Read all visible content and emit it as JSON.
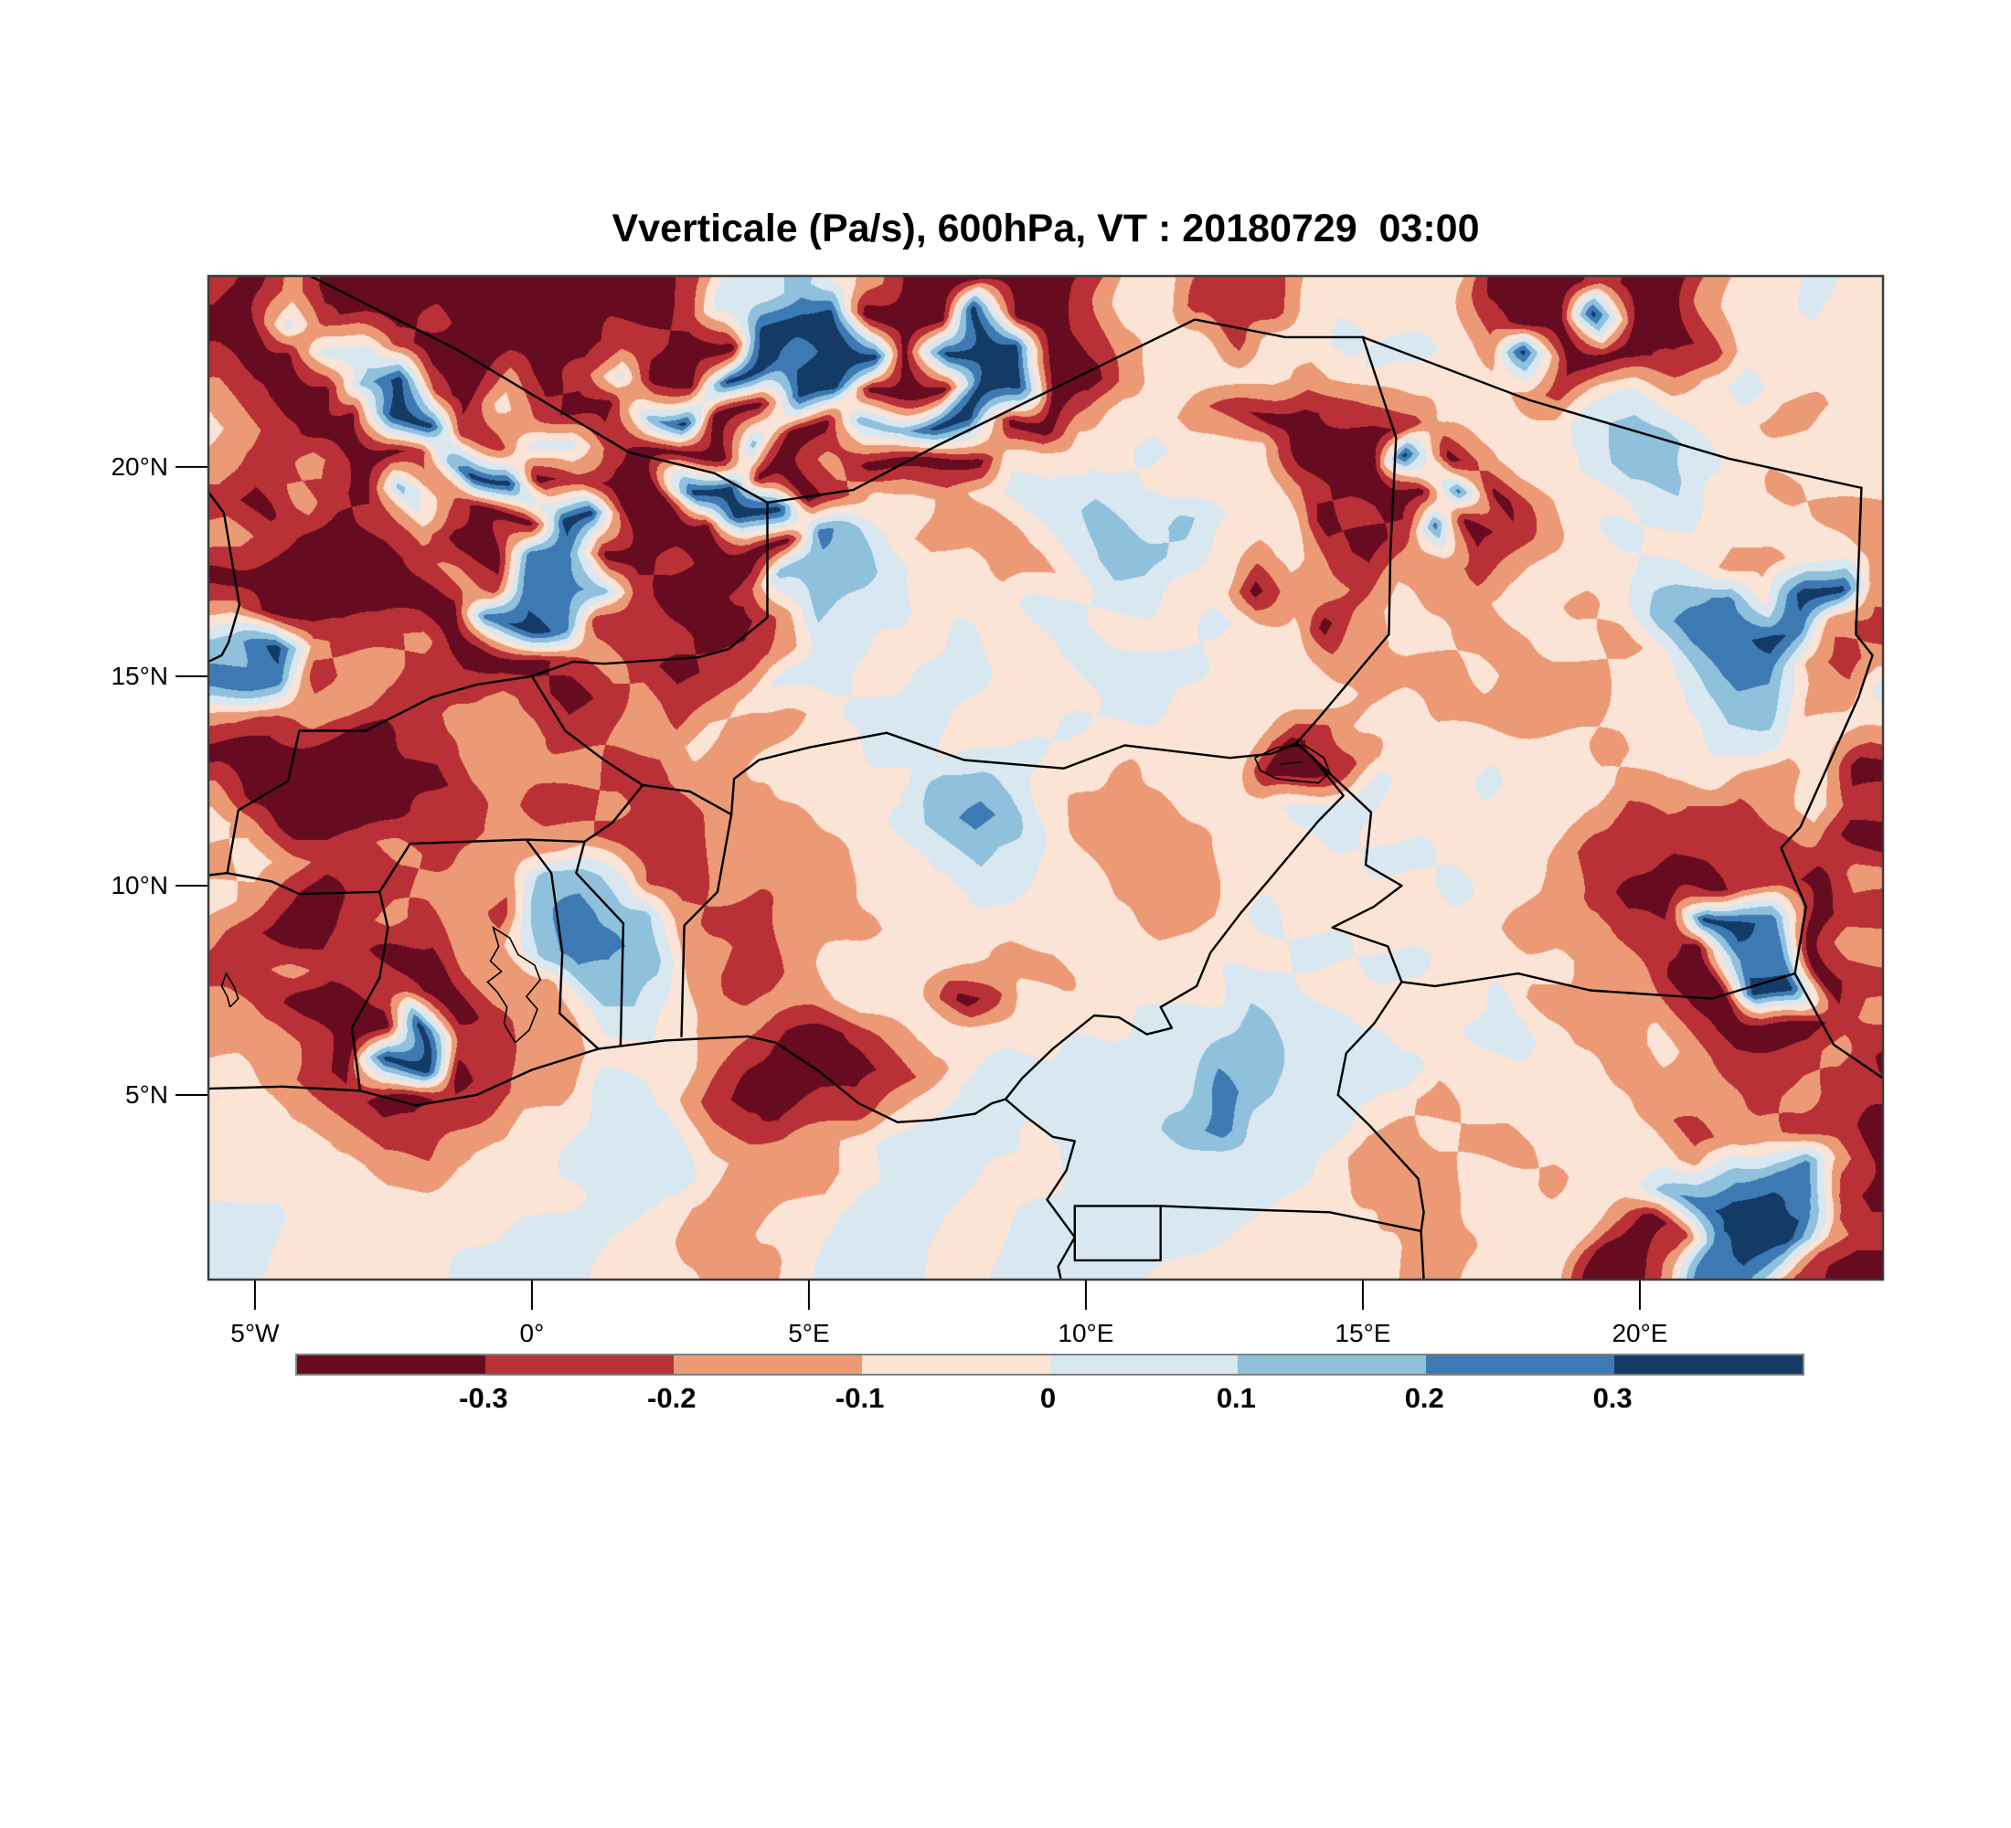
{
  "title": "Vverticale (Pa/s), 600hPa, VT : 20180729  03:00",
  "chart_data": {
    "type": "heatmap",
    "variable": "Vverticale",
    "units": "Pa/s",
    "pressure_level": "600hPa",
    "valid_time": "20180729  03:00",
    "title": "Vverticale (Pa/s), 600hPa, VT : 20180729  03:00",
    "grid_on": false,
    "extent": {
      "lon_min": -5.84,
      "lon_max": 24.39,
      "lat_min": 0.59,
      "lat_max": 24.56
    },
    "x_ticks": [
      {
        "label": "5°W",
        "lon": -5
      },
      {
        "label": "0°",
        "lon": 0
      },
      {
        "label": "5°E",
        "lon": 5
      },
      {
        "label": "10°E",
        "lon": 10
      },
      {
        "label": "15°E",
        "lon": 15
      },
      {
        "label": "20°E",
        "lon": 20
      }
    ],
    "y_ticks": [
      {
        "label": "20°N",
        "lat": 20
      },
      {
        "label": "15°N",
        "lat": 15
      },
      {
        "label": "10°N",
        "lat": 10
      },
      {
        "label": "5°N",
        "lat": 5
      }
    ],
    "colorbar": {
      "tick_labels": [
        "-0.3",
        "-0.2",
        "-0.1",
        "0",
        "0.1",
        "0.2",
        "0.3"
      ],
      "thresholds": [
        -0.3,
        -0.2,
        -0.1,
        0,
        0.1,
        0.2,
        0.3
      ],
      "colors": [
        "#670c20",
        "#b93036",
        "#ec9a76",
        "#fbe3d6",
        "#d8e7f0",
        "#8fc0dc",
        "#3d7ab4",
        "#143a66"
      ]
    },
    "grid": {
      "cols": 46,
      "rows": 28,
      "value_of_level": "v = -0.35 + 0.1*digit",
      "level_rows": [
        "1020000000000144532000001331113333300010023343",
        "0041001000011007770007001233133433310070013333",
        "1004410020140077677077700233332344327000134333",
        "2100571031005700770007701332100123332134333223",
        "3210077114410005005577003343330001333345543333",
        "2112001770100770020000334433331007023345533233",
        "1021052007700077013323445454330100602334433322",
        "2100120066001000653222345543231016012343322332",
        "0000012166510015554332234433022122123334563772",
        "2000000676111002544333443334330232233235667621",
        "5721120001210112443343344443332233223323566212",
        "6612211210121234433443334433333222322233455224",
        "2122112221122322344433343333301332222233344332",
        "0000011222211223334433433233300133333323332230",
        "2000000121121122333355432223334443343332211231",
        "3200001122211122233456532222333433333321111120",
        "2321121225541122223345433222333344333211001102",
        "3210112215655211223334433322343333433210077601",
        "2100121225665221222333333333334433332221106602",
        "1121100222554211233333223333443344333322007701",
        "2100110122443222233301333444544333342222100012",
        "2210071122333210012333344445544433443223211120",
        "3210770122443100001234444446544443333322221211",
        "3321001233444210112344444456444332333332122110",
        "3332112334444322234444344444443223223333256620",
        "3333223333443222234443344444433222332335677610",
        "4433333344433223344433444444333322333320167721",
        "4433333444433322344433444433333332233300266210"
      ]
    },
    "borders": [
      [
        [
          -5.84,
          5.15
        ],
        [
          -4.5,
          5.2
        ],
        [
          -3.1,
          5.1
        ],
        [
          -2.1,
          4.75
        ],
        [
          -1.0,
          5.0
        ],
        [
          0.0,
          5.6
        ],
        [
          1.2,
          6.1
        ],
        [
          2.4,
          6.3
        ],
        [
          3.9,
          6.4
        ],
        [
          4.4,
          6.25
        ],
        [
          5.2,
          5.55
        ],
        [
          5.9,
          4.8
        ],
        [
          6.6,
          4.35
        ],
        [
          7.2,
          4.4
        ],
        [
          8.0,
          4.55
        ],
        [
          8.3,
          4.8
        ],
        [
          8.55,
          4.9
        ],
        [
          8.9,
          4.5
        ],
        [
          9.4,
          4.0
        ],
        [
          9.8,
          3.9
        ],
        [
          9.65,
          3.2
        ],
        [
          9.3,
          2.5
        ],
        [
          9.8,
          1.6
        ],
        [
          9.5,
          0.9
        ],
        [
          9.55,
          0.59
        ]
      ],
      [
        [
          -3.1,
          5.1
        ],
        [
          -3.25,
          6.6
        ],
        [
          -2.75,
          7.8
        ],
        [
          -2.6,
          9.0
        ],
        [
          -2.75,
          9.85
        ]
      ],
      [
        [
          -2.75,
          9.85
        ],
        [
          -4.2,
          9.8
        ],
        [
          -4.7,
          10.1
        ],
        [
          -5.5,
          10.3
        ],
        [
          -5.84,
          10.25
        ]
      ],
      [
        [
          -5.5,
          10.3
        ],
        [
          -5.3,
          11.8
        ],
        [
          -4.4,
          12.5
        ],
        [
          -4.2,
          13.7
        ],
        [
          -3.0,
          13.7
        ],
        [
          -1.8,
          14.5
        ],
        [
          -1.0,
          14.8
        ],
        [
          0.0,
          15.0
        ]
      ],
      [
        [
          1.2,
          6.1
        ],
        [
          0.5,
          6.95
        ],
        [
          0.55,
          8.4
        ],
        [
          0.35,
          10.3
        ],
        [
          -0.1,
          11.1
        ]
      ],
      [
        [
          -2.75,
          9.85
        ],
        [
          -2.2,
          11.0
        ],
        [
          -0.1,
          11.1
        ]
      ],
      [
        [
          1.6,
          6.2
        ],
        [
          1.65,
          9.1
        ],
        [
          0.8,
          10.3
        ],
        [
          0.95,
          11.05
        ]
      ],
      [
        [
          -0.1,
          11.1
        ],
        [
          0.95,
          11.05
        ],
        [
          1.45,
          11.5
        ],
        [
          2.0,
          12.4
        ]
      ],
      [
        [
          2.7,
          6.4
        ],
        [
          2.75,
          9.05
        ],
        [
          3.35,
          9.85
        ],
        [
          3.6,
          11.7
        ]
      ],
      [
        [
          2.0,
          12.4
        ],
        [
          2.85,
          12.25
        ],
        [
          3.6,
          11.7
        ]
      ],
      [
        [
          2.0,
          12.4
        ],
        [
          1.3,
          13.0
        ],
        [
          0.6,
          13.7
        ],
        [
          0.0,
          15.0
        ]
      ],
      [
        [
          0.0,
          15.0
        ],
        [
          0.75,
          15.35
        ],
        [
          1.3,
          15.3
        ],
        [
          3.0,
          15.45
        ],
        [
          3.55,
          15.65
        ],
        [
          4.25,
          16.4
        ],
        [
          4.25,
          19.15
        ]
      ],
      [
        [
          4.25,
          19.15
        ],
        [
          3.3,
          19.85
        ],
        [
          1.75,
          20.35
        ],
        [
          -1.35,
          22.8
        ],
        [
          -4.0,
          24.56
        ]
      ],
      [
        [
          -5.84,
          19.4
        ],
        [
          -5.56,
          18.9
        ],
        [
          -5.28,
          16.7
        ],
        [
          -5.48,
          15.8
        ],
        [
          -5.6,
          15.5
        ],
        [
          -5.84,
          15.35
        ]
      ],
      [
        [
          4.25,
          19.15
        ],
        [
          5.8,
          19.45
        ],
        [
          7.3,
          20.5
        ],
        [
          9.0,
          21.6
        ],
        [
          11.97,
          23.52
        ]
      ],
      [
        [
          11.97,
          23.52
        ],
        [
          13.6,
          23.1
        ],
        [
          15.0,
          23.1
        ]
      ],
      [
        [
          15.0,
          23.1
        ],
        [
          18.0,
          21.6
        ],
        [
          21.6,
          20.2
        ],
        [
          24.0,
          19.5
        ]
      ],
      [
        [
          24.0,
          19.5
        ],
        [
          23.9,
          16.0
        ],
        [
          24.2,
          15.5
        ],
        [
          23.95,
          14.5
        ],
        [
          22.9,
          11.4
        ],
        [
          22.55,
          10.9
        ],
        [
          23.0,
          9.5
        ],
        [
          22.8,
          7.9
        ]
      ],
      [
        [
          22.8,
          7.9
        ],
        [
          21.3,
          7.3
        ],
        [
          19.1,
          7.5
        ],
        [
          17.8,
          7.9
        ],
        [
          16.3,
          7.6
        ],
        [
          15.7,
          7.7
        ]
      ],
      [
        [
          22.8,
          7.9
        ],
        [
          23.5,
          6.2
        ],
        [
          24.39,
          5.4
        ]
      ],
      [
        [
          15.0,
          23.1
        ],
        [
          15.6,
          20.7
        ],
        [
          15.5,
          18.0
        ],
        [
          15.47,
          16.0
        ],
        [
          14.2,
          14.0
        ],
        [
          13.8,
          13.4
        ]
      ],
      [
        [
          3.6,
          11.7
        ],
        [
          3.65,
          12.55
        ],
        [
          4.1,
          13.0
        ],
        [
          5.0,
          13.3
        ],
        [
          6.4,
          13.65
        ],
        [
          7.8,
          13.0
        ],
        [
          9.6,
          12.8
        ],
        [
          10.7,
          13.35
        ],
        [
          12.6,
          13.05
        ],
        [
          13.35,
          13.15
        ],
        [
          13.8,
          13.4
        ]
      ],
      [
        [
          8.55,
          4.9
        ],
        [
          8.85,
          5.4
        ],
        [
          9.4,
          6.1
        ],
        [
          10.15,
          6.9
        ],
        [
          10.6,
          6.85
        ],
        [
          11.1,
          6.45
        ],
        [
          11.55,
          6.6
        ],
        [
          11.35,
          7.1
        ],
        [
          12.0,
          7.6
        ],
        [
          12.25,
          8.4
        ],
        [
          12.8,
          9.35
        ],
        [
          13.25,
          10.05
        ],
        [
          14.2,
          11.55
        ],
        [
          14.65,
          12.15
        ],
        [
          14.1,
          13.05
        ],
        [
          13.8,
          13.4
        ]
      ],
      [
        [
          14.1,
          13.05
        ],
        [
          15.15,
          11.75
        ],
        [
          15.05,
          10.5
        ],
        [
          15.7,
          10.0
        ],
        [
          15.2,
          9.5
        ],
        [
          14.45,
          9.0
        ],
        [
          15.45,
          8.55
        ],
        [
          15.7,
          7.7
        ]
      ],
      [
        [
          15.7,
          7.7
        ],
        [
          15.2,
          6.7
        ],
        [
          14.7,
          6.0
        ],
        [
          14.55,
          5.0
        ],
        [
          15.1,
          4.3
        ],
        [
          16.0,
          3.0
        ],
        [
          16.1,
          2.2
        ],
        [
          16.05,
          1.75
        ],
        [
          16.1,
          0.59
        ]
      ],
      [
        [
          9.8,
          2.35
        ],
        [
          11.35,
          2.35
        ],
        [
          13.2,
          2.25
        ],
        [
          14.4,
          2.2
        ],
        [
          16.05,
          1.75
        ]
      ],
      [
        [
          9.8,
          2.35
        ],
        [
          9.8,
          1.05
        ],
        [
          11.35,
          1.05
        ],
        [
          11.35,
          2.35
        ]
      ]
    ],
    "lakes": [
      [
        [
          -0.3,
          6.25
        ],
        [
          -0.05,
          6.55
        ],
        [
          0.1,
          7.05
        ],
        [
          -0.1,
          7.35
        ],
        [
          0.15,
          7.75
        ],
        [
          0.05,
          8.1
        ],
        [
          -0.25,
          8.35
        ],
        [
          -0.4,
          8.75
        ],
        [
          -0.7,
          9.0
        ],
        [
          -0.6,
          8.55
        ],
        [
          -0.75,
          8.2
        ],
        [
          -0.55,
          7.95
        ],
        [
          -0.8,
          7.7
        ],
        [
          -0.62,
          7.45
        ],
        [
          -0.45,
          7.1
        ],
        [
          -0.5,
          6.7
        ],
        [
          -0.3,
          6.25
        ]
      ],
      [
        [
          -5.45,
          7.1
        ],
        [
          -5.3,
          7.3
        ],
        [
          -5.38,
          7.6
        ],
        [
          -5.52,
          7.9
        ],
        [
          -5.6,
          7.6
        ],
        [
          -5.5,
          7.35
        ],
        [
          -5.45,
          7.1
        ]
      ],
      [
        [
          13.05,
          13.05
        ],
        [
          13.45,
          13.3
        ],
        [
          13.95,
          13.35
        ],
        [
          14.3,
          13.05
        ],
        [
          14.4,
          12.7
        ],
        [
          14.2,
          12.45
        ],
        [
          13.8,
          12.5
        ],
        [
          13.45,
          12.55
        ],
        [
          13.15,
          12.75
        ],
        [
          13.05,
          13.05
        ]
      ],
      [
        [
          13.5,
          12.9
        ],
        [
          13.9,
          12.95
        ]
      ]
    ]
  }
}
